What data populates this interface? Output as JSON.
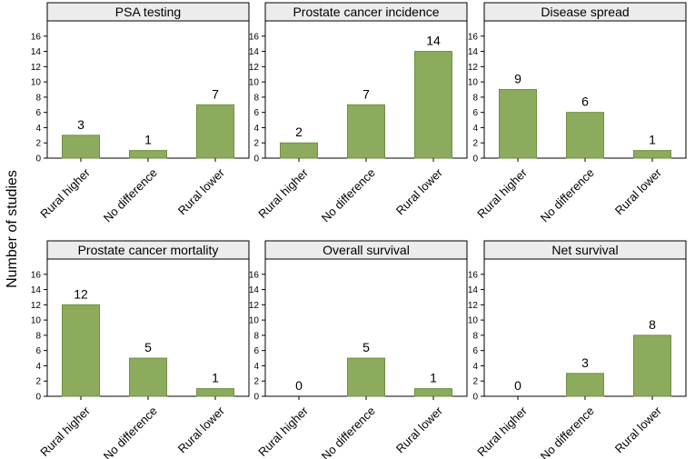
{
  "chart_data": {
    "type": "bar",
    "ylabel": "Number of studies",
    "yticks": [
      0,
      2,
      4,
      6,
      8,
      10,
      12,
      14,
      16
    ],
    "ylim": [
      0,
      18
    ],
    "bar_color": "#8cab5c",
    "bar_edge_color": "#6f8f42",
    "header_fill": "#ececec",
    "panels": [
      {
        "title": "PSA testing",
        "categories": [
          "Rural higher",
          "No difference",
          "Rural lower"
        ],
        "values": [
          3,
          1,
          7
        ]
      },
      {
        "title": "Prostate cancer incidence",
        "categories": [
          "Rural higher",
          "No difference",
          "Rural lower"
        ],
        "values": [
          2,
          7,
          14
        ]
      },
      {
        "title": "Disease spread",
        "categories": [
          "Rural higher",
          "No difference",
          "Rural lower"
        ],
        "values": [
          9,
          6,
          1
        ]
      },
      {
        "title": "Prostate cancer mortality",
        "categories": [
          "Rural higher",
          "No difference",
          "Rural lower"
        ],
        "values": [
          12,
          5,
          1
        ]
      },
      {
        "title": "Overall survival",
        "categories": [
          "Rural higher",
          "No difference",
          "Rural lower"
        ],
        "values": [
          0,
          5,
          1
        ]
      },
      {
        "title": "Net survival",
        "categories": [
          "Rural higher",
          "No difference",
          "Rural lower"
        ],
        "values": [
          0,
          3,
          8
        ]
      }
    ]
  }
}
